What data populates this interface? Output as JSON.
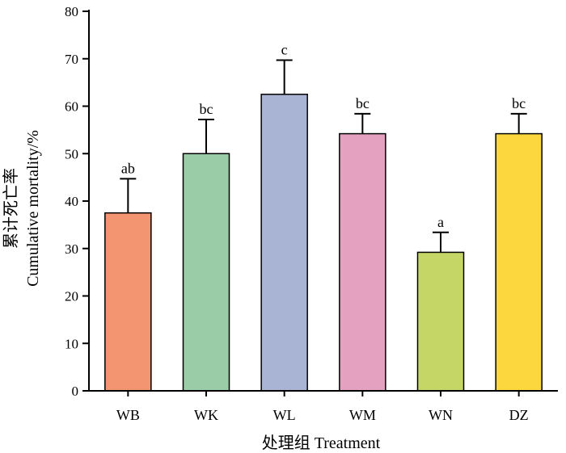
{
  "chart_data": {
    "type": "bar",
    "categories": [
      "WB",
      "WK",
      "WL",
      "WM",
      "WN",
      "DZ"
    ],
    "values": [
      37.5,
      50.0,
      62.5,
      54.2,
      29.2,
      54.2
    ],
    "errors": [
      7.2,
      7.2,
      7.2,
      4.2,
      4.2,
      4.2
    ],
    "significance": [
      "ab",
      "bc",
      "c",
      "bc",
      "a",
      "bc"
    ],
    "colors": [
      "#F29570",
      "#9ACCA7",
      "#A9B4D4",
      "#E5A1C0",
      "#C5D667",
      "#FDD73E"
    ],
    "xlabel": "处理组 Treatment",
    "ylabel_cn": "累计死亡率",
    "ylabel_en": "Cumulative mortality/%",
    "ylim": [
      0,
      80
    ],
    "yticks": [
      0,
      10,
      20,
      30,
      40,
      50,
      60,
      70,
      80
    ],
    "grid": false
  }
}
